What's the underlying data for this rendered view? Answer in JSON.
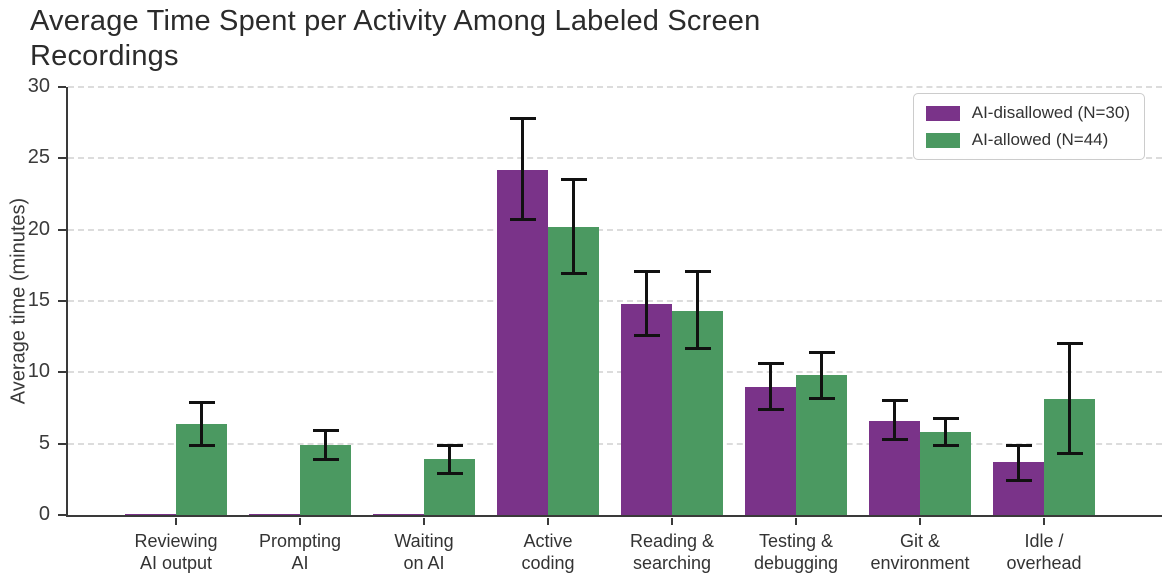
{
  "chart_data": {
    "type": "bar",
    "title": "Average Time Spent per Activity Among Labeled Screen Recordings",
    "xlabel": "",
    "ylabel": "Average time (minutes)",
    "ylim": [
      0,
      30
    ],
    "yticks": [
      0,
      5,
      10,
      15,
      20,
      25,
      30
    ],
    "grid": "dashed-horizontal",
    "legend_position": "top-right",
    "categories": [
      "Reviewing\nAI output",
      "Prompting\nAI",
      "Waiting\non AI",
      "Active\ncoding",
      "Reading &\nsearching",
      "Testing &\ndebugging",
      "Git &\nenvironment",
      "Idle /\noverhead"
    ],
    "series": [
      {
        "name": "AI-disallowed (N=30)",
        "color": "#7a3389",
        "values": [
          0.1,
          0.1,
          0.1,
          24.2,
          14.8,
          9.0,
          6.6,
          3.7
        ],
        "error_low": [
          null,
          null,
          null,
          20.7,
          12.6,
          7.4,
          5.3,
          2.4
        ],
        "error_high": [
          null,
          null,
          null,
          27.8,
          17.1,
          10.6,
          8.0,
          4.9
        ]
      },
      {
        "name": "AI-allowed (N=44)",
        "color": "#4b9961",
        "values": [
          6.4,
          4.9,
          3.9,
          20.2,
          14.3,
          9.8,
          5.8,
          8.1
        ],
        "error_low": [
          4.9,
          3.9,
          2.9,
          16.9,
          11.7,
          8.2,
          4.9,
          4.3
        ],
        "error_high": [
          7.9,
          5.9,
          4.9,
          23.5,
          17.1,
          11.4,
          6.8,
          12.0
        ]
      }
    ],
    "error_bar_color": "#111111",
    "axis_color": "#3a3a3a",
    "gridline_color": "#dcdcdc",
    "background_color": "#ffffff"
  }
}
